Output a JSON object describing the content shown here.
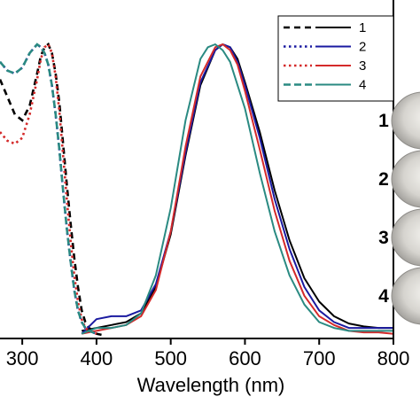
{
  "chart_data": {
    "type": "line",
    "xlabel": "Wavelength (nm)",
    "ylabel": "",
    "xlim": [
      270,
      800
    ],
    "ylim": [
      0,
      1.05
    ],
    "grid": false,
    "legend_placement": "top-right",
    "x_ticks": [
      "300",
      "400",
      "500",
      "600",
      "700",
      "800"
    ],
    "x_tick_values": [
      300,
      400,
      500,
      600,
      700,
      800
    ],
    "sample_labels": [
      "1",
      "2",
      "3",
      "4"
    ],
    "series": [
      {
        "name": "1",
        "color": "#000000",
        "excitation": {
          "x": [
            270,
            280,
            290,
            300,
            310,
            320,
            325,
            330,
            335,
            340,
            345,
            350,
            355,
            360,
            365,
            370,
            375,
            380,
            385,
            390,
            395,
            400,
            410
          ],
          "y": [
            0.88,
            0.82,
            0.76,
            0.74,
            0.79,
            0.9,
            0.96,
            0.99,
            1.0,
            0.97,
            0.9,
            0.8,
            0.66,
            0.52,
            0.39,
            0.27,
            0.17,
            0.09,
            0.05,
            0.03,
            0.02,
            0.01,
            0.005
          ]
        },
        "emission": {
          "x": [
            380,
            400,
            420,
            440,
            460,
            480,
            500,
            520,
            540,
            560,
            570,
            580,
            590,
            600,
            620,
            640,
            660,
            680,
            700,
            720,
            740,
            760,
            780,
            800
          ],
          "y": [
            0.02,
            0.03,
            0.04,
            0.05,
            0.08,
            0.17,
            0.35,
            0.62,
            0.86,
            0.98,
            1.0,
            0.99,
            0.95,
            0.87,
            0.7,
            0.5,
            0.33,
            0.2,
            0.12,
            0.07,
            0.045,
            0.035,
            0.03,
            0.03
          ]
        }
      },
      {
        "name": "2",
        "color": "#1a1aa0",
        "excitation": {
          "x": [
            270,
            280,
            290,
            300,
            310,
            320,
            325,
            330,
            335,
            340,
            345,
            350,
            355,
            360,
            365,
            370,
            375,
            380,
            385,
            390,
            400
          ],
          "y": [
            0.94,
            0.91,
            0.9,
            0.92,
            0.97,
            1.0,
            0.99,
            0.97,
            0.93,
            0.86,
            0.76,
            0.64,
            0.5,
            0.37,
            0.26,
            0.16,
            0.09,
            0.05,
            0.03,
            0.02,
            0.01
          ]
        },
        "emission": {
          "x": [
            380,
            400,
            420,
            440,
            460,
            480,
            500,
            520,
            540,
            560,
            570,
            580,
            590,
            600,
            620,
            640,
            660,
            680,
            700,
            720,
            740,
            760,
            780,
            800
          ],
          "y": [
            0.01,
            0.06,
            0.07,
            0.07,
            0.09,
            0.18,
            0.36,
            0.63,
            0.87,
            0.98,
            1.0,
            0.99,
            0.94,
            0.86,
            0.68,
            0.47,
            0.3,
            0.17,
            0.09,
            0.05,
            0.03,
            0.03,
            0.03,
            0.03
          ]
        }
      },
      {
        "name": "3",
        "color": "#d42a2a",
        "excitation": {
          "x": [
            270,
            280,
            290,
            300,
            310,
            320,
            325,
            330,
            335,
            340,
            345,
            350,
            355,
            360,
            365,
            370,
            375,
            380,
            385,
            390,
            400
          ],
          "y": [
            0.7,
            0.67,
            0.66,
            0.68,
            0.76,
            0.88,
            0.95,
            0.99,
            1.0,
            0.97,
            0.89,
            0.77,
            0.62,
            0.47,
            0.33,
            0.21,
            0.12,
            0.06,
            0.03,
            0.02,
            0.01
          ]
        },
        "emission": {
          "x": [
            380,
            400,
            420,
            440,
            460,
            480,
            500,
            520,
            540,
            560,
            570,
            580,
            590,
            600,
            620,
            640,
            660,
            680,
            700,
            720,
            740,
            760,
            780,
            800
          ],
          "y": [
            0.01,
            0.02,
            0.03,
            0.04,
            0.07,
            0.16,
            0.36,
            0.65,
            0.89,
            0.99,
            1.0,
            0.98,
            0.93,
            0.84,
            0.64,
            0.43,
            0.26,
            0.14,
            0.07,
            0.04,
            0.02,
            0.015,
            0.015,
            0.01
          ]
        }
      },
      {
        "name": "4",
        "color": "#2a8a82",
        "excitation": {
          "x": [
            270,
            280,
            290,
            300,
            310,
            320,
            325,
            330,
            335,
            340,
            345,
            350,
            355,
            360,
            365,
            370,
            375,
            380,
            385,
            390,
            400
          ],
          "y": [
            0.94,
            0.91,
            0.9,
            0.92,
            0.97,
            1.0,
            0.99,
            0.97,
            0.93,
            0.86,
            0.76,
            0.64,
            0.5,
            0.37,
            0.26,
            0.16,
            0.09,
            0.05,
            0.03,
            0.02,
            0.01
          ]
        },
        "emission": {
          "x": [
            380,
            400,
            420,
            440,
            460,
            480,
            500,
            520,
            540,
            550,
            560,
            570,
            580,
            600,
            620,
            640,
            660,
            680,
            700,
            720,
            740,
            760,
            780,
            800
          ],
          "y": [
            0.01,
            0.03,
            0.03,
            0.04,
            0.08,
            0.21,
            0.44,
            0.74,
            0.95,
            0.99,
            1.0,
            0.98,
            0.94,
            0.78,
            0.56,
            0.36,
            0.21,
            0.11,
            0.05,
            0.03,
            0.02,
            0.02,
            0.02,
            0.02
          ]
        }
      }
    ]
  }
}
